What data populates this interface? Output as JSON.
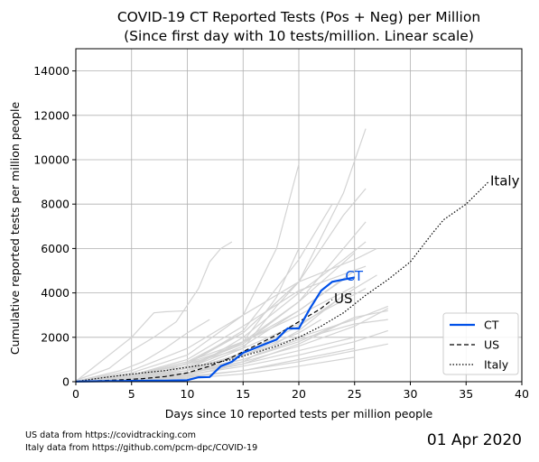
{
  "chart_data": {
    "type": "line",
    "title": "COVID-19 CT Reported Tests (Pos + Neg) per Million",
    "subtitle": "(Since first day with 10 tests/million. Linear scale)",
    "xlabel": "Days since 10 reported tests per million people",
    "ylabel": "Cumulative reported tests per million people",
    "xlim": [
      0,
      40
    ],
    "ylim": [
      0,
      15000
    ],
    "x_ticks": [
      0,
      5,
      10,
      15,
      20,
      25,
      30,
      35,
      40
    ],
    "y_ticks": [
      0,
      2000,
      4000,
      6000,
      8000,
      10000,
      12000,
      14000
    ],
    "x_tick_labels": [
      "0",
      "5",
      "10",
      "15",
      "20",
      "25",
      "30",
      "35",
      "40"
    ],
    "y_tick_labels": [
      "0",
      "2000",
      "4000",
      "6000",
      "8000",
      "10000",
      "12000",
      "14000"
    ],
    "grid": true,
    "legend_position": "bottom-right",
    "scale": "linear",
    "series": [
      {
        "name": "CT",
        "style": "solid",
        "color": "#0050e8",
        "x": [
          0,
          1,
          2,
          3,
          4,
          5,
          6,
          7,
          8,
          9,
          10,
          11,
          12,
          13,
          14,
          15,
          16,
          17,
          18,
          19,
          20,
          21,
          22,
          23,
          24,
          25
        ],
        "y": [
          10,
          15,
          20,
          25,
          30,
          35,
          40,
          45,
          50,
          55,
          70,
          200,
          210,
          700,
          900,
          1300,
          1500,
          1700,
          1900,
          2400,
          2400,
          3300,
          4100,
          4500,
          4600,
          4700
        ]
      },
      {
        "name": "US",
        "style": "dashed",
        "color": "#000000",
        "x": [
          0,
          2,
          4,
          6,
          8,
          10,
          12,
          14,
          16,
          18,
          20,
          22,
          23
        ],
        "y": [
          10,
          40,
          80,
          140,
          230,
          400,
          700,
          1100,
          1600,
          2100,
          2700,
          3300,
          3700
        ]
      },
      {
        "name": "Italy",
        "style": "dotted",
        "color": "#000000",
        "x": [
          0,
          2,
          4,
          6,
          8,
          10,
          12,
          14,
          16,
          18,
          20,
          22,
          24,
          26,
          28,
          30,
          32,
          33,
          35,
          37
        ],
        "y": [
          10,
          150,
          280,
          400,
          500,
          650,
          800,
          1000,
          1300,
          1600,
          2000,
          2500,
          3100,
          3900,
          4600,
          5400,
          6700,
          7300,
          8000,
          9000
        ]
      }
    ],
    "series_labels": [
      {
        "text": "CT",
        "x": 24,
        "y": 4750,
        "color": "#0050e8"
      },
      {
        "text": "US",
        "x": 23,
        "y": 3750,
        "color": "#000000"
      },
      {
        "text": "Italy",
        "x": 37,
        "y": 9050,
        "color": "#000000"
      }
    ],
    "background_lines": [
      {
        "x": [
          0,
          3,
          5,
          7,
          9,
          11,
          12,
          13,
          14
        ],
        "y": [
          60,
          600,
          1400,
          2000,
          2700,
          4200,
          5400,
          6000,
          6300
        ]
      },
      {
        "x": [
          0,
          5,
          10,
          15,
          18,
          20
        ],
        "y": [
          20,
          200,
          600,
          1800,
          3800,
          6000
        ]
      },
      {
        "x": [
          0,
          5,
          10,
          15,
          18,
          20
        ],
        "y": [
          20,
          400,
          1200,
          3000,
          6000,
          9800
        ]
      },
      {
        "x": [
          0,
          5,
          10,
          15,
          20,
          24,
          26
        ],
        "y": [
          20,
          300,
          900,
          2200,
          4500,
          8500,
          11400
        ]
      },
      {
        "x": [
          0,
          5,
          10,
          15,
          20,
          24,
          26
        ],
        "y": [
          20,
          250,
          800,
          2200,
          4500,
          7500,
          8700
        ]
      },
      {
        "x": [
          0,
          5,
          10,
          15,
          20,
          23
        ],
        "y": [
          20,
          250,
          800,
          2300,
          5500,
          8000
        ]
      },
      {
        "x": [
          0,
          5,
          10,
          15,
          20,
          24,
          26
        ],
        "y": [
          20,
          200,
          700,
          1800,
          3600,
          6000,
          7200
        ]
      },
      {
        "x": [
          0,
          5,
          10,
          15,
          20,
          25,
          27
        ],
        "y": [
          20,
          200,
          500,
          1300,
          2500,
          4200,
          4800
        ]
      },
      {
        "x": [
          0,
          5,
          10,
          15,
          20,
          25,
          28
        ],
        "y": [
          20,
          150,
          400,
          900,
          1600,
          2500,
          3300
        ]
      },
      {
        "x": [
          0,
          5,
          10,
          15,
          20,
          25,
          28
        ],
        "y": [
          20,
          100,
          300,
          700,
          1200,
          1800,
          2300
        ]
      },
      {
        "x": [
          0,
          5,
          10,
          15,
          20,
          25,
          28
        ],
        "y": [
          20,
          80,
          250,
          500,
          900,
          1400,
          1700
        ]
      },
      {
        "x": [
          0,
          4,
          6,
          8,
          10,
          12
        ],
        "y": [
          20,
          500,
          900,
          1500,
          2200,
          2800
        ]
      },
      {
        "x": [
          0,
          5,
          7,
          8,
          10
        ],
        "y": [
          20,
          2000,
          3100,
          3150,
          3200
        ]
      },
      {
        "x": [
          0,
          5,
          10,
          15,
          20,
          25,
          27
        ],
        "y": [
          20,
          500,
          1500,
          3000,
          4500,
          5500,
          6000
        ]
      },
      {
        "x": [
          0,
          5,
          10,
          15,
          20,
          24,
          26
        ],
        "y": [
          20,
          100,
          500,
          2000,
          4000,
          5500,
          6300
        ]
      },
      {
        "x": [
          0,
          5,
          10,
          15,
          20,
          25
        ],
        "y": [
          20,
          150,
          600,
          1600,
          3200,
          5000
        ]
      },
      {
        "x": [
          0,
          5,
          10,
          15,
          20,
          25,
          28
        ],
        "y": [
          20,
          200,
          500,
          1000,
          1800,
          2900,
          3200
        ]
      },
      {
        "x": [
          0,
          5,
          10,
          15,
          20,
          25,
          28
        ],
        "y": [
          20,
          100,
          400,
          1000,
          1900,
          2600,
          2800
        ]
      },
      {
        "x": [
          0,
          5,
          10,
          15,
          20,
          26
        ],
        "y": [
          20,
          300,
          800,
          1500,
          2600,
          4200
        ]
      },
      {
        "x": [
          0,
          5,
          10,
          15,
          18,
          20
        ],
        "y": [
          20,
          100,
          500,
          1500,
          3400,
          4500
        ]
      },
      {
        "x": [
          0,
          5,
          10,
          15,
          20,
          25
        ],
        "y": [
          20,
          80,
          200,
          500,
          1000,
          1500
        ]
      },
      {
        "x": [
          0,
          5,
          10,
          15,
          20,
          25
        ],
        "y": [
          20,
          60,
          150,
          350,
          700,
          1100
        ]
      },
      {
        "x": [
          0,
          5,
          10,
          15,
          20,
          24
        ],
        "y": [
          20,
          120,
          350,
          900,
          2300,
          3900
        ]
      },
      {
        "x": [
          0,
          5,
          10,
          15,
          20,
          25
        ],
        "y": [
          20,
          200,
          700,
          1700,
          3600,
          5800
        ]
      },
      {
        "x": [
          0,
          5,
          10,
          15,
          20,
          25
        ],
        "y": [
          20,
          180,
          400,
          800,
          1400,
          2000
        ]
      },
      {
        "x": [
          0,
          5,
          10,
          15,
          20,
          26
        ],
        "y": [
          20,
          300,
          1000,
          2500,
          4100,
          5200
        ]
      },
      {
        "x": [
          0,
          6,
          10,
          15,
          20,
          25
        ],
        "y": [
          20,
          400,
          900,
          1800,
          3000,
          4300
        ]
      },
      {
        "x": [
          0,
          3,
          8,
          14,
          20,
          24
        ],
        "y": [
          20,
          150,
          500,
          1500,
          3200,
          4600
        ]
      },
      {
        "x": [
          0,
          5,
          10,
          15,
          20,
          22
        ],
        "y": [
          20,
          120,
          600,
          1200,
          2200,
          2800
        ]
      },
      {
        "x": [
          0,
          5,
          10,
          15,
          20,
          25
        ],
        "y": [
          20,
          90,
          280,
          800,
          1700,
          2900
        ]
      },
      {
        "x": [
          0,
          5,
          10,
          15,
          20,
          25,
          28
        ],
        "y": [
          20,
          150,
          500,
          1200,
          2000,
          2800,
          3400
        ]
      }
    ]
  },
  "footer": {
    "source_us": "US data from https://covidtracking.com",
    "source_italy": "Italy data from https://github.com/pcm-dpc/COVID-19",
    "date": "01 Apr 2020"
  }
}
